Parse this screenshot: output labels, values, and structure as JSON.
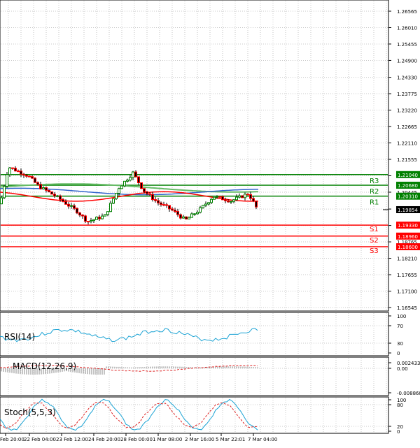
{
  "main": {
    "price_axis": [
      "1.26565",
      "1.26010",
      "1.25455",
      "1.24900",
      "1.24330",
      "1.23775",
      "1.23220",
      "1.22665",
      "1.22110",
      "1.21555",
      "1.21000",
      "1.20445",
      "1.19875",
      "1.19320",
      "1.18765",
      "1.18210",
      "1.17655",
      "1.17100",
      "1.16545"
    ],
    "levels": [
      {
        "id": "r3",
        "label": "R3",
        "price": "1.21040",
        "color": "#008000"
      },
      {
        "id": "r2",
        "label": "R2",
        "price": "1.20680",
        "color": "#008000"
      },
      {
        "id": "r1",
        "label": "R1",
        "price": "1.20310",
        "color": "#008000"
      },
      {
        "id": "s1",
        "label": "S1",
        "price": "1.19330",
        "color": "#ff0000"
      },
      {
        "id": "s2",
        "label": "S2",
        "price": "1.18960",
        "color": "#ff0000"
      },
      {
        "id": "s3",
        "label": "S3",
        "price": "1.18600",
        "color": "#ff0000"
      }
    ],
    "current_price": "1.19854"
  },
  "time_axis": [
    "Feb 20:00",
    "22 Feb 04:00",
    "23 Feb 12:00",
    "24 Feb 20:00",
    "28 Feb 00:00",
    "1 Mar 08:00",
    "2 Mar 16:00",
    "5 Mar 22:01",
    "7 Mar 04:00"
  ],
  "rsi": {
    "label": "RSI(14)",
    "axis": [
      "100",
      "70",
      "30",
      "0"
    ]
  },
  "macd": {
    "label": "MACD(12,26,9)",
    "axis": [
      "0.002433",
      "0.00",
      "-0.008868"
    ]
  },
  "stoch": {
    "label": "Stoch(5,5,3)",
    "axis": [
      "100",
      "80",
      "20",
      "0"
    ]
  },
  "colors": {
    "candle_up": "#008000",
    "candle_down": "#ff0000",
    "ma_fast": "#ff0000",
    "ma_mid": "#3366cc",
    "ma_slow": "#66bb66",
    "indicator_line": "#1ca3d4",
    "signal_line": "#dd2222"
  }
}
